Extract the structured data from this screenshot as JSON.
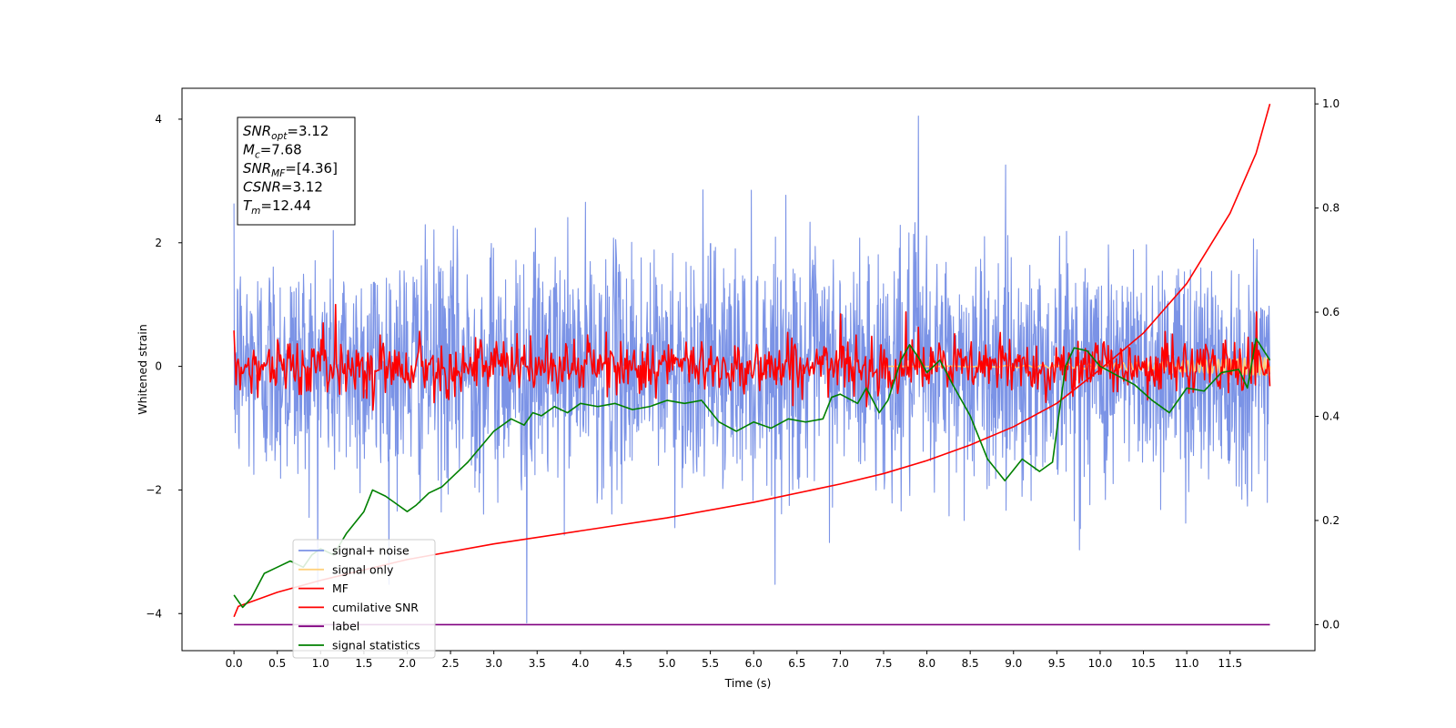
{
  "chart_data": {
    "type": "line",
    "title": "",
    "xlabel": "Time (s)",
    "ylabel": "Whitened strain",
    "ylabel_right": "",
    "xlim": [
      -0.6,
      12.48
    ],
    "ylim": [
      -4.6,
      4.5
    ],
    "ylim_right": [
      -0.05,
      1.03
    ],
    "x_ticks": [
      "0.0",
      "0.5",
      "1.0",
      "1.5",
      "2.0",
      "2.5",
      "3.0",
      "3.5",
      "4.0",
      "4.5",
      "5.0",
      "5.5",
      "6.0",
      "6.5",
      "7.0",
      "7.5",
      "8.0",
      "8.5",
      "9.0",
      "9.5",
      "10.0",
      "10.5",
      "11.0",
      "11.5"
    ],
    "y_ticks": [
      "4",
      "2",
      "0",
      "−2",
      "−4"
    ],
    "y_ticks_right": [
      "1.0",
      "0.8",
      "0.6",
      "0.4",
      "0.2",
      "0.0"
    ],
    "grid": false,
    "legend_position": "lower-left",
    "info_box": {
      "lines": [
        {
          "var": "SNR",
          "sub": "opt",
          "value": "=3.12"
        },
        {
          "var": "M",
          "sub": "c",
          "value": "=7.68"
        },
        {
          "var": "SNR",
          "sub": "MF",
          "value": "=[4.36]"
        },
        {
          "var": "CSNR",
          "sub": "",
          "value": "=3.12"
        },
        {
          "var": "T",
          "sub": "m",
          "value": "=12.44"
        }
      ]
    },
    "series": [
      {
        "name": "signal+ noise",
        "axis": "left",
        "color": "#7b93e6",
        "kind": "noise",
        "x_range": [
          0.0,
          11.96
        ],
        "n_points": 2400,
        "std": 0.95,
        "peak_max": 4.05,
        "peak_max_x": 7.9,
        "peak_min": -4.15,
        "peak_min_x": 3.38
      },
      {
        "name": "signal only",
        "axis": "left",
        "color": "#ffd27f",
        "kind": "chirp",
        "x_range": [
          7.5,
          11.96
        ],
        "amplitude_end": 0.15
      },
      {
        "name": "MF",
        "axis": "left",
        "color": "#ff0000",
        "kind": "noise",
        "x_range": [
          0.0,
          11.96
        ],
        "n_points": 1000,
        "std": 0.22,
        "x": [
          0.0,
          1.17,
          7.0,
          7.76,
          11.8
        ],
        "y": [
          0.58,
          1.0,
          0.85,
          0.88,
          0.88
        ]
      },
      {
        "name": "cumilative SNR",
        "axis": "right",
        "color": "#ff0000",
        "x": [
          0.0,
          0.05,
          0.5,
          1.0,
          2.0,
          3.0,
          4.0,
          5.0,
          6.0,
          7.0,
          7.5,
          8.0,
          8.5,
          9.0,
          9.5,
          10.0,
          10.5,
          11.0,
          11.5,
          11.8,
          11.96
        ],
        "y": [
          0.015,
          0.035,
          0.062,
          0.085,
          0.125,
          0.155,
          0.18,
          0.205,
          0.235,
          0.27,
          0.29,
          0.315,
          0.345,
          0.38,
          0.425,
          0.49,
          0.56,
          0.655,
          0.79,
          0.905,
          1.0
        ]
      },
      {
        "name": "label",
        "axis": "right",
        "color": "#800080",
        "x": [
          0.0,
          11.96
        ],
        "y": [
          0.0,
          0.0
        ]
      },
      {
        "name": "signal statistics",
        "axis": "left",
        "color": "#008000",
        "x": [
          0.0,
          0.1,
          0.2,
          0.35,
          0.5,
          0.65,
          0.8,
          0.9,
          1.0,
          1.15,
          1.3,
          1.5,
          1.6,
          1.75,
          1.9,
          2.0,
          2.1,
          2.25,
          2.4,
          2.55,
          2.7,
          2.85,
          3.0,
          3.1,
          3.2,
          3.35,
          3.45,
          3.55,
          3.7,
          3.85,
          4.0,
          4.2,
          4.4,
          4.6,
          4.8,
          5.0,
          5.2,
          5.4,
          5.6,
          5.8,
          6.0,
          6.2,
          6.4,
          6.6,
          6.8,
          6.9,
          7.0,
          7.2,
          7.3,
          7.45,
          7.55,
          7.7,
          7.8,
          7.9,
          8.0,
          8.15,
          8.3,
          8.5,
          8.7,
          8.9,
          9.1,
          9.3,
          9.45,
          9.6,
          9.7,
          9.85,
          10.0,
          10.2,
          10.4,
          10.6,
          10.8,
          11.0,
          11.2,
          11.4,
          11.6,
          11.7,
          11.8,
          11.96
        ],
        "y": [
          -3.7,
          -3.9,
          -3.75,
          -3.35,
          -3.25,
          -3.15,
          -3.25,
          -3.05,
          -2.95,
          -3.05,
          -2.7,
          -2.35,
          -2.0,
          -2.1,
          -2.25,
          -2.35,
          -2.25,
          -2.05,
          -1.95,
          -1.75,
          -1.55,
          -1.3,
          -1.05,
          -0.95,
          -0.85,
          -0.95,
          -0.75,
          -0.8,
          -0.65,
          -0.75,
          -0.6,
          -0.65,
          -0.6,
          -0.7,
          -0.65,
          -0.55,
          -0.6,
          -0.55,
          -0.9,
          -1.05,
          -0.9,
          -1.0,
          -0.85,
          -0.9,
          -0.85,
          -0.5,
          -0.45,
          -0.6,
          -0.35,
          -0.75,
          -0.55,
          0.1,
          0.35,
          0.15,
          -0.1,
          0.1,
          -0.3,
          -0.8,
          -1.5,
          -1.85,
          -1.5,
          -1.7,
          -1.55,
          0.0,
          0.3,
          0.25,
          0.0,
          -0.15,
          -0.3,
          -0.55,
          -0.75,
          -0.35,
          -0.4,
          -0.1,
          -0.05,
          -0.35,
          0.45,
          0.1
        ]
      }
    ]
  }
}
